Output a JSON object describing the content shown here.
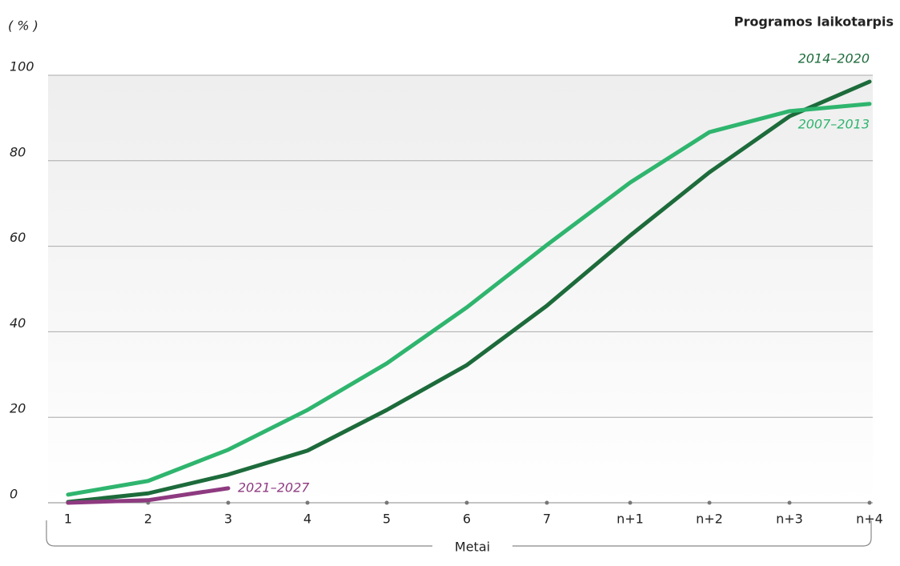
{
  "chart_data": {
    "type": "line",
    "title": "Programos laikotarpis",
    "y_label": "( % )",
    "x_label": "Metai",
    "categories": [
      "1",
      "2",
      "3",
      "4",
      "5",
      "6",
      "7",
      "n+1",
      "n+2",
      "n+3",
      "n+4"
    ],
    "series": [
      {
        "name": "2014–2020",
        "color": "#1d6b3b",
        "values": [
          0.2,
          2.2,
          6.6,
          12.2,
          21.7,
          32.2,
          46.1,
          62.5,
          77.3,
          90.4,
          98.5
        ]
      },
      {
        "name": "2007–2013",
        "color": "#2fb56e",
        "values": [
          1.9,
          5.1,
          12.4,
          21.7,
          32.6,
          45.7,
          60.3,
          74.9,
          86.7,
          91.6,
          93.3
        ]
      },
      {
        "name": "2021–2027",
        "color": "#8e3a80",
        "values": [
          0,
          0.6,
          3.4,
          null,
          null,
          null,
          null,
          null,
          null,
          null,
          null
        ]
      }
    ],
    "ylim": [
      0,
      100
    ],
    "yticks": [
      0,
      20,
      40,
      60,
      80,
      100
    ],
    "grid": true
  }
}
